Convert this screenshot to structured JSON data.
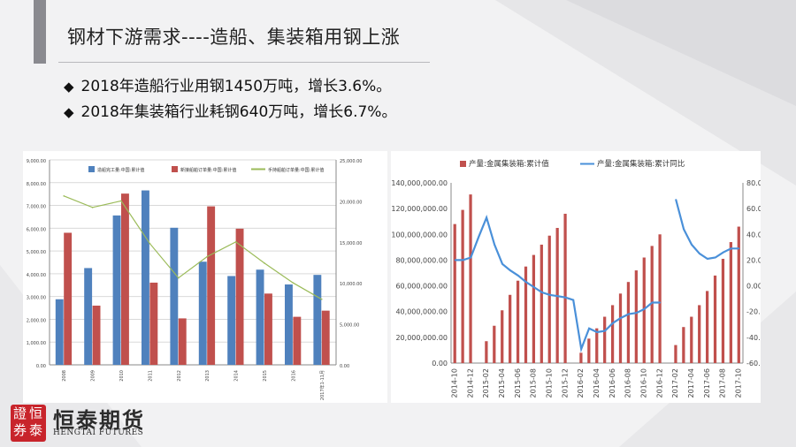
{
  "slide": {
    "title": "钢材下游需求----造船、集装箱用钢上涨",
    "bullets": [
      "2018年造船行业用钢1450万吨，增长3.6%。",
      "2018年集装箱行业耗钢640万吨，增长6.7%。"
    ],
    "bullet_icon": "diamond-bullet-icon",
    "logo": {
      "cn": "恒泰期货",
      "en": "HENGTAI FUTURES",
      "seal": [
        "證",
        "恒",
        "券",
        "泰"
      ]
    },
    "colors": {
      "blue": "#4f81bd",
      "red": "#c0504d",
      "green": "#9bbb59",
      "line_blue": "#4a90d9"
    }
  },
  "chart_data": [
    {
      "type": "bar",
      "title": "",
      "legend_position": "top",
      "categories": [
        "2008",
        "2009",
        "2010",
        "2011",
        "2012",
        "2013",
        "2014",
        "2015",
        "2016",
        "2017年1-11月"
      ],
      "ylim": [
        0,
        9000
      ],
      "y_ticks": [
        "0.00",
        "1,000.00",
        "2,000.00",
        "3,000.00",
        "4,000.00",
        "5,000.00",
        "6,000.00",
        "7,000.00",
        "8,000.00",
        "9,000.00"
      ],
      "y2lim": [
        0,
        25000
      ],
      "y2_ticks": [
        "0.00",
        "5,000.00",
        "10,000.00",
        "15,000.00",
        "20,000.00",
        "25,000.00"
      ],
      "series": [
        {
          "name": "造船完工量:中国:累计值",
          "axis": "left",
          "kind": "bar",
          "color": "#4f81bd",
          "values": [
            2880,
            4250,
            6560,
            7660,
            6020,
            4530,
            3900,
            4180,
            3530,
            3950
          ]
        },
        {
          "name": "新接船舶订单量:中国:累计值",
          "axis": "left",
          "kind": "bar",
          "color": "#c0504d",
          "values": [
            5800,
            2600,
            7520,
            3610,
            2040,
            6960,
            5980,
            3130,
            2110,
            2380
          ]
        },
        {
          "name": "手持船舶订单量:中国:累计值",
          "axis": "right",
          "kind": "line",
          "color": "#9bbb59",
          "values": [
            20600,
            19200,
            20000,
            14800,
            10600,
            13200,
            15000,
            12400,
            10000,
            8000
          ]
        }
      ]
    },
    {
      "type": "bar",
      "title": "",
      "legend_position": "top",
      "categories": [
        "2014-10",
        "2014-11",
        "2014-12",
        "2015-01",
        "2015-02",
        "2015-03",
        "2015-04",
        "2015-05",
        "2015-06",
        "2015-07",
        "2015-08",
        "2015-09",
        "2015-10",
        "2015-11",
        "2015-12",
        "2016-01",
        "2016-02",
        "2016-03",
        "2016-04",
        "2016-05",
        "2016-06",
        "2016-07",
        "2016-08",
        "2016-09",
        "2016-10",
        "2016-11",
        "2016-12",
        "2017-01",
        "2017-02",
        "2017-03",
        "2017-04",
        "2017-05",
        "2017-06",
        "2017-07",
        "2017-08",
        "2017-09",
        "2017-10"
      ],
      "x_tick_labels": [
        "2014-10",
        "2014-12",
        "2015-02",
        "2015-04",
        "2015-06",
        "2015-08",
        "2015-10",
        "2015-12",
        "2016-02",
        "2016-04",
        "2016-06",
        "2016-08",
        "2016-10",
        "2016-12",
        "2017-02",
        "2017-04",
        "2017-06",
        "2017-08",
        "2017-10"
      ],
      "ylim": [
        0,
        140000000
      ],
      "y_ticks": [
        "0.00",
        "20,000,000.00",
        "40,000,000.00",
        "60,000,000.00",
        "80,000,000.00",
        "100,000,000.00",
        "120,000,000.00",
        "140,000,000.00"
      ],
      "y2lim": [
        -60,
        80
      ],
      "y2_ticks": [
        "-60.00",
        "-40.00",
        "-20.00",
        "0.00",
        "20.00",
        "40.00",
        "60.00",
        "80.00"
      ],
      "series": [
        {
          "name": "产量:金属集装箱:累计值",
          "axis": "left",
          "kind": "bar",
          "color": "#c0504d",
          "values": [
            108000000,
            119000000,
            131000000,
            0,
            17000000,
            29000000,
            41000000,
            53000000,
            64000000,
            75000000,
            84000000,
            92000000,
            99000000,
            105000000,
            116000000,
            0,
            8000000,
            19000000,
            27000000,
            36000000,
            45000000,
            54000000,
            63000000,
            72000000,
            82000000,
            91000000,
            100000000,
            0,
            14000000,
            28000000,
            36000000,
            45000000,
            56000000,
            68000000,
            81000000,
            94000000,
            106000000
          ]
        },
        {
          "name": "产量:金属集装箱:累计同比",
          "axis": "right",
          "kind": "line",
          "color": "#4a90d9",
          "values": [
            20,
            20,
            22,
            38,
            53,
            32,
            17,
            12,
            8,
            3,
            -1,
            -5,
            -7,
            -8,
            -9,
            -11,
            -49,
            -33,
            -36,
            -35,
            -29,
            -25,
            -22,
            -21,
            -18,
            -13,
            -13,
            null,
            67,
            44,
            32,
            25,
            21,
            22,
            26,
            29,
            29
          ]
        }
      ]
    }
  ]
}
